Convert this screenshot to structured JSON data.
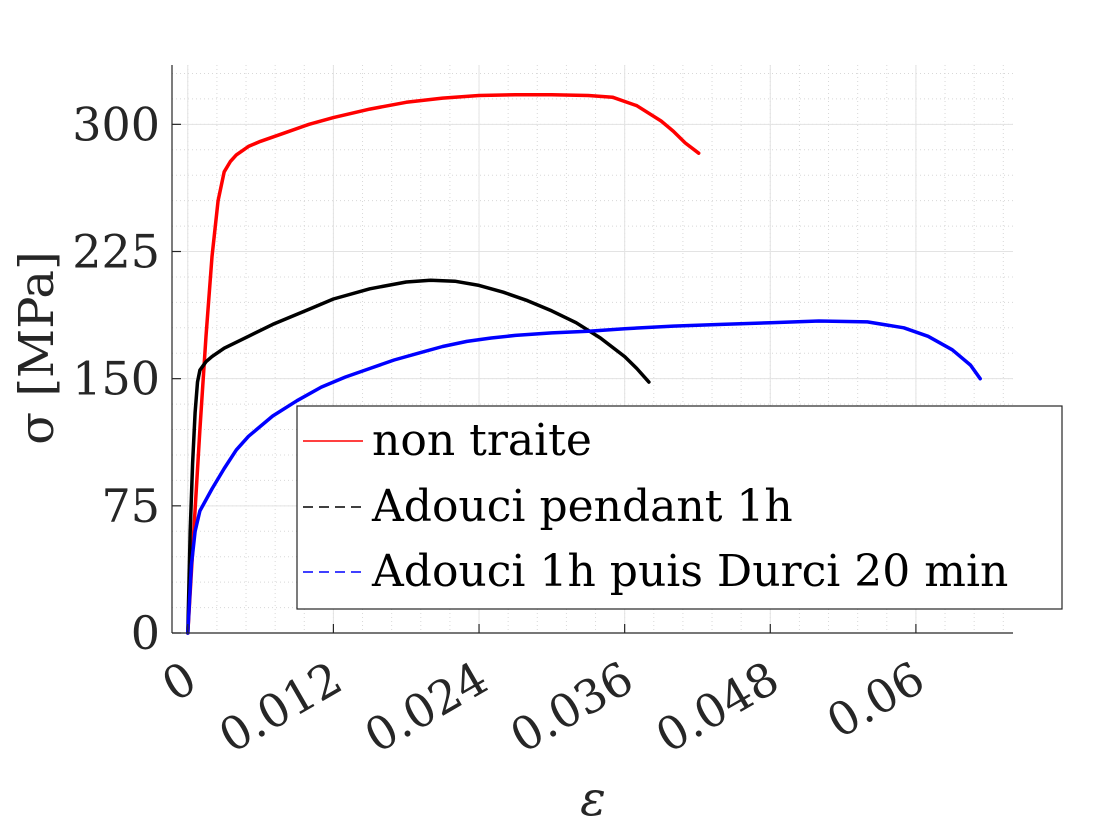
{
  "chart_data": {
    "type": "line",
    "xlabel": "ε",
    "ylabel": "σ [MPa]",
    "xlim": [
      -0.0013,
      0.068
    ],
    "ylim": [
      0,
      335
    ],
    "x_ticks": [
      0,
      0.012,
      0.024,
      0.036,
      0.048,
      0.06
    ],
    "x_tick_labels": [
      "0",
      "0.012",
      "0.024",
      "0.036",
      "0.048",
      "0.06"
    ],
    "y_ticks": [
      0,
      75,
      150,
      225,
      300
    ],
    "y_tick_labels": [
      "0",
      "75",
      "150",
      "225",
      "300"
    ],
    "grid": true,
    "minor_grid": true,
    "legend_position": "bottom-right",
    "series": [
      {
        "name": "non traite",
        "legend_label": "non traite",
        "color": "#ff0000",
        "line_style": "solid",
        "x": [
          0,
          0.0005,
          0.001,
          0.0015,
          0.002,
          0.0025,
          0.003,
          0.0035,
          0.004,
          0.005,
          0.006,
          0.008,
          0.01,
          0.012,
          0.015,
          0.018,
          0.021,
          0.024,
          0.027,
          0.03,
          0.033,
          0.035,
          0.037,
          0.039,
          0.04,
          0.041,
          0.0421
        ],
        "y": [
          0,
          60,
          120,
          175,
          222,
          255,
          272,
          278,
          282,
          287,
          290,
          295,
          300,
          304,
          309,
          313,
          315.5,
          317,
          317.5,
          317.5,
          317,
          316,
          311,
          302,
          296,
          289,
          283
        ]
      },
      {
        "name": "Adouci pendant 1h",
        "legend_label": "Adouci pendant 1h",
        "color": "#000000",
        "line_style": "solid",
        "x": [
          0,
          0.0002,
          0.0004,
          0.0006,
          0.0008,
          0.001,
          0.0015,
          0.002,
          0.003,
          0.005,
          0.007,
          0.01,
          0.012,
          0.015,
          0.018,
          0.02,
          0.022,
          0.024,
          0.026,
          0.028,
          0.03,
          0.032,
          0.034,
          0.036,
          0.037,
          0.038
        ],
        "y": [
          0,
          60,
          100,
          130,
          148,
          155,
          160,
          163,
          168,
          175,
          182,
          191,
          197,
          203,
          207,
          208,
          207.5,
          205,
          201,
          196,
          190,
          183,
          174,
          163,
          156,
          148
        ]
      },
      {
        "name": "Adouci 1h puis Durci 20 min",
        "legend_label": "Adouci 1h puis Durci 20 min",
        "color": "#0000ff",
        "line_style": "solid",
        "x": [
          0,
          0.0003,
          0.0006,
          0.001,
          0.002,
          0.003,
          0.004,
          0.005,
          0.007,
          0.009,
          0.011,
          0.013,
          0.015,
          0.017,
          0.019,
          0.021,
          0.023,
          0.025,
          0.027,
          0.03,
          0.033,
          0.036,
          0.04,
          0.044,
          0.048,
          0.052,
          0.056,
          0.059,
          0.061,
          0.063,
          0.0645,
          0.0653
        ],
        "y": [
          0,
          40,
          60,
          72,
          85,
          97,
          108,
          116,
          128,
          137,
          145,
          151,
          156,
          161,
          165,
          169,
          172,
          174,
          175.5,
          177,
          178,
          179.5,
          181,
          182,
          183,
          184,
          183.5,
          180,
          175,
          167,
          158,
          150
        ]
      }
    ]
  }
}
